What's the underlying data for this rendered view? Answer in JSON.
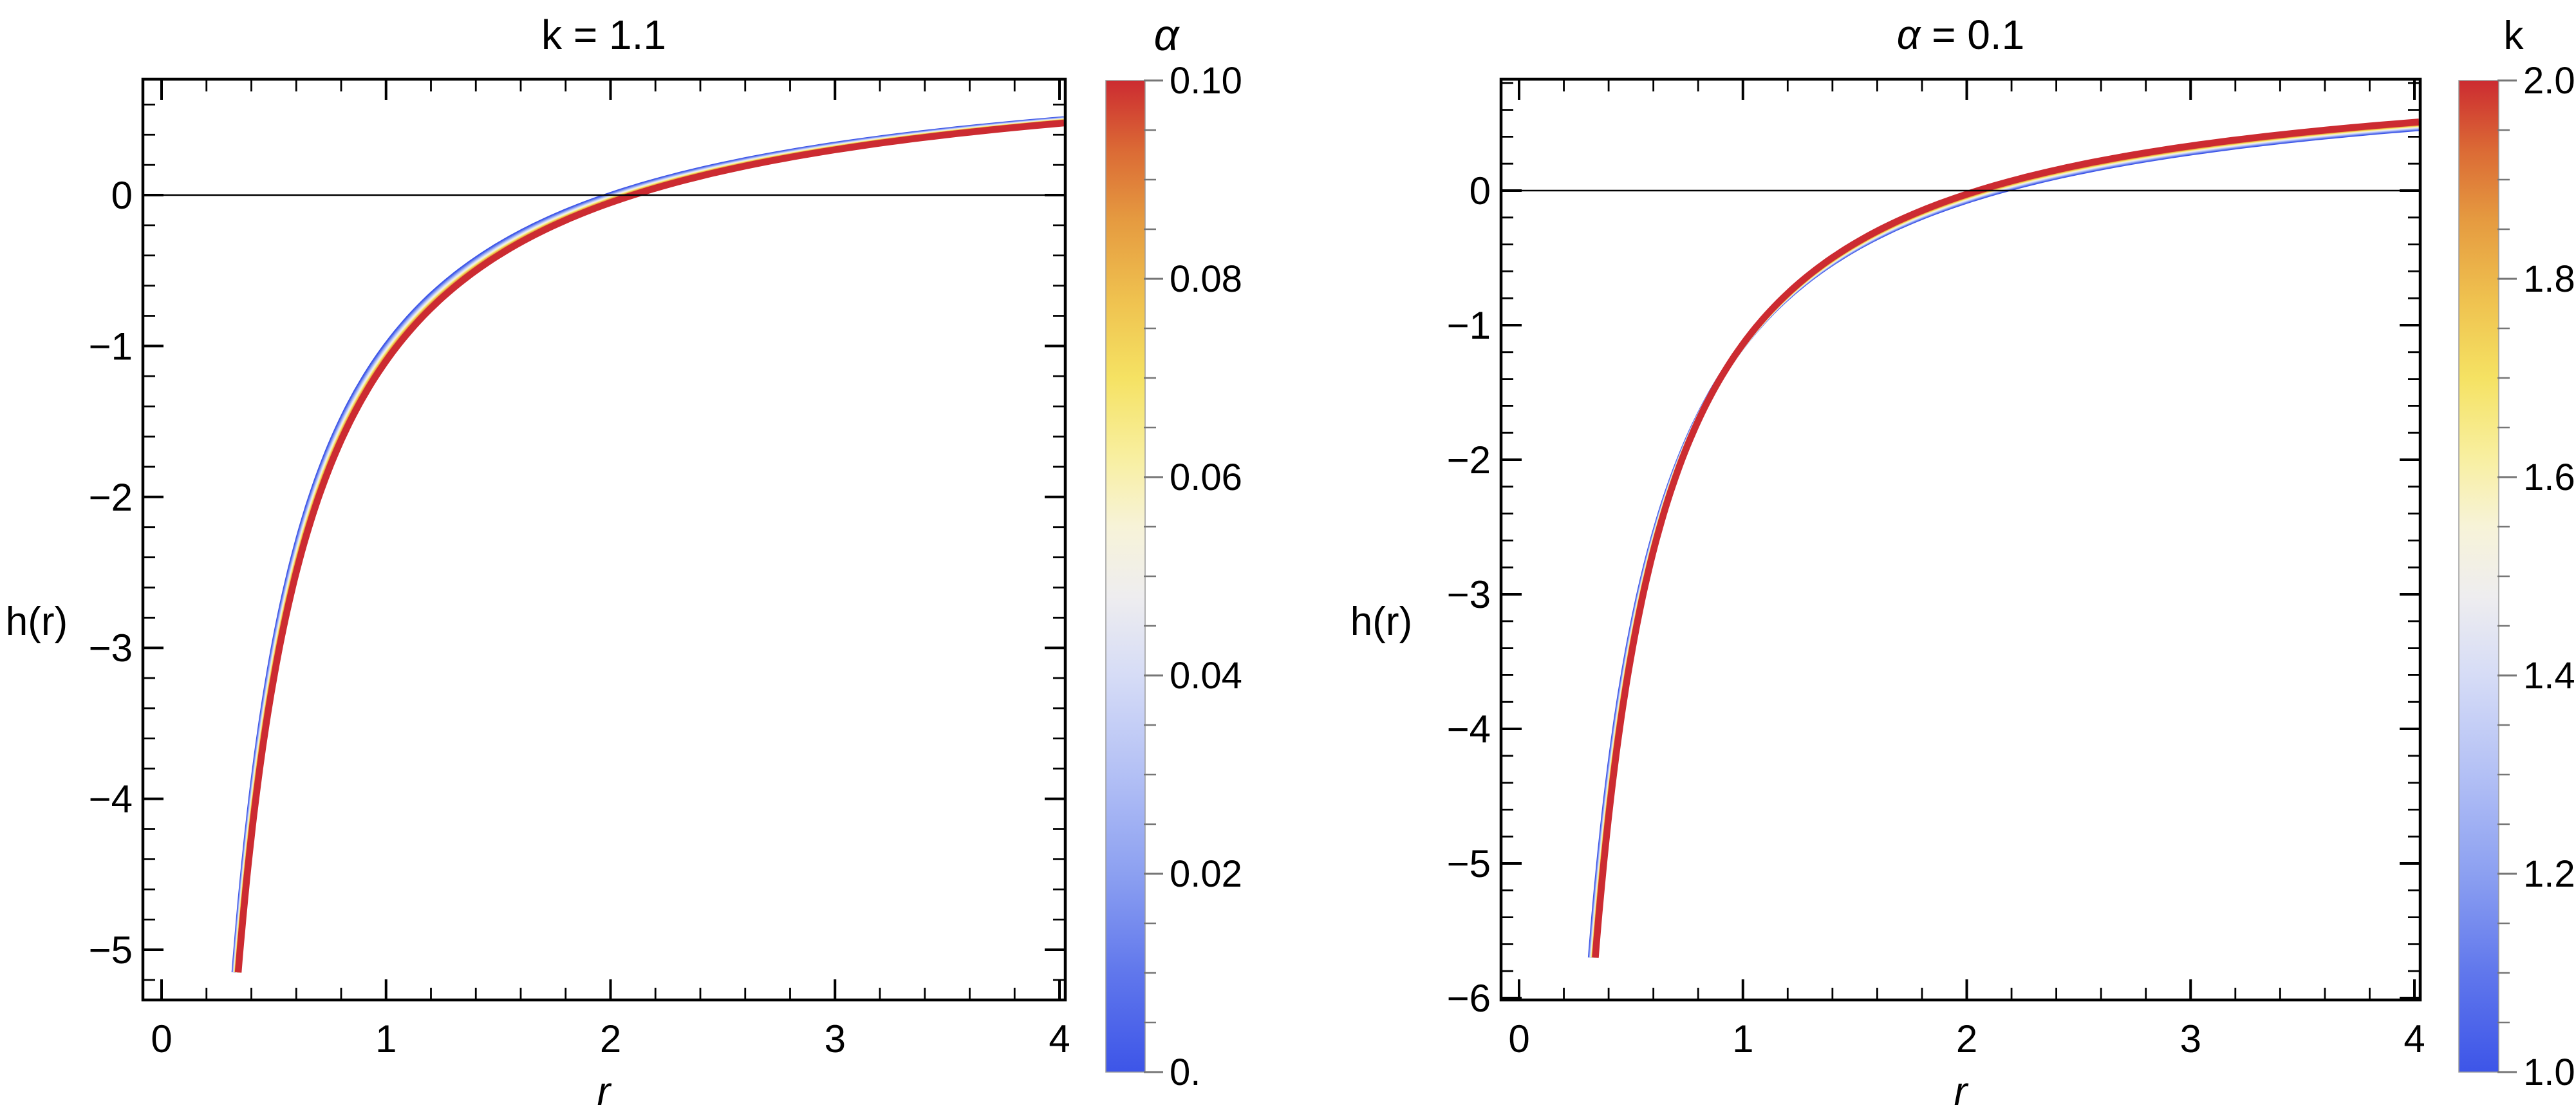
{
  "chart_data": [
    {
      "type": "line",
      "title": "k = 1.1",
      "title_parts": [
        {
          "text": "k = 1.1",
          "italic": false
        }
      ],
      "xlabel": "r",
      "ylabel": "h(r)",
      "xlim": [
        -0.08,
        4.03
      ],
      "ylim": [
        -5.33,
        0.77
      ],
      "x_ticks": {
        "values": [
          0,
          1,
          2,
          3,
          4
        ],
        "labels": [
          "0",
          "1",
          "2",
          "3",
          "4"
        ],
        "minor_step": 0.2
      },
      "y_ticks": {
        "values": [
          0,
          -1,
          -2,
          -3,
          -4,
          -5
        ],
        "labels": [
          "0",
          "−1",
          "−2",
          "−3",
          "−4",
          "−5"
        ],
        "minor_step": 0.2
      },
      "zero_line": true,
      "family": {
        "parameter": "α",
        "param_from": 0,
        "param_to": 0.1,
        "n_curves": 11,
        "model": "h(r) = 1 - (c/r)^p ; curves colored by α from blue (0) to red (0.1)",
        "crossing_from": 2.0,
        "crossing_to": 2.1,
        "power_from": 1.0,
        "power_to": 1.0,
        "r_end_h": -5.15,
        "r_max": 4.02,
        "spread_exponent": 0.85
      },
      "series": [
        {
          "name": "α = 0",
          "color_t": 0,
          "samples": [
            [
              0.32,
              -5.25
            ],
            [
              0.4,
              -4.0
            ],
            [
              0.5,
              -3.0
            ],
            [
              0.7,
              -1.86
            ],
            [
              1.0,
              -1.0
            ],
            [
              1.5,
              -0.33
            ],
            [
              2.0,
              0.0
            ],
            [
              3.0,
              0.33
            ],
            [
              4.0,
              0.5
            ]
          ]
        },
        {
          "name": "α = 0.1",
          "color_t": 1,
          "samples": [
            [
              0.33,
              -5.36
            ],
            [
              0.4,
              -4.25
            ],
            [
              0.5,
              -3.2
            ],
            [
              0.7,
              -2.0
            ],
            [
              1.0,
              -1.1
            ],
            [
              1.5,
              -0.4
            ],
            [
              2.1,
              0.0
            ],
            [
              3.0,
              0.3
            ],
            [
              4.0,
              0.48
            ]
          ]
        }
      ],
      "colorbar": {
        "title": "α",
        "title_italic": true,
        "min": 0,
        "max": 0.1,
        "tick_values": [
          0.1,
          0.08,
          0.06,
          0.04,
          0.02,
          0
        ],
        "tick_labels": [
          "0.10",
          "0.08",
          "0.06",
          "0.04",
          "0.02",
          "0."
        ],
        "minor_step": 0.005
      }
    },
    {
      "type": "line",
      "title": "α = 0.1",
      "title_parts": [
        {
          "text": "α",
          "italic": true
        },
        {
          "text": " = 0.1",
          "italic": false
        }
      ],
      "xlabel": "r",
      "ylabel": "h(r)",
      "xlim": [
        -0.08,
        4.03
      ],
      "ylim": [
        -6.0,
        0.83
      ],
      "x_ticks": {
        "values": [
          0,
          1,
          2,
          3,
          4
        ],
        "labels": [
          "0",
          "1",
          "2",
          "3",
          "4"
        ],
        "minor_step": 0.2
      },
      "y_ticks": {
        "values": [
          0,
          -1,
          -2,
          -3,
          -4,
          -5,
          -6
        ],
        "labels": [
          "0",
          "−1",
          "−2",
          "−3",
          "−4",
          "−5",
          "−6"
        ],
        "minor_step": 0.2
      },
      "zero_line": true,
      "family": {
        "parameter": "k",
        "param_from": 1,
        "param_to": 2,
        "n_curves": 11,
        "model": "h(r) = 1 - (c/r)^p ; curves colored by k from blue (1.0) to red (2.0)",
        "crossing_from": 2.15,
        "crossing_to": 2.05,
        "power_from": 1.0,
        "power_to": 1.06,
        "r_end_h": -5.7,
        "r_max": 4.02,
        "spread_exponent": 0.85
      },
      "series": [
        {
          "name": "k = 1",
          "color_t": 0,
          "samples": [
            [
              0.32,
              -5.72
            ],
            [
              0.5,
              -3.3
            ],
            [
              0.7,
              -2.07
            ],
            [
              1.0,
              -1.15
            ],
            [
              1.5,
              -0.43
            ],
            [
              2.15,
              0.0
            ],
            [
              3.0,
              0.28
            ],
            [
              4.0,
              0.46
            ]
          ]
        },
        {
          "name": "k = 2",
          "color_t": 1,
          "samples": [
            [
              0.34,
              -5.72
            ],
            [
              0.5,
              -3.46
            ],
            [
              0.7,
              -2.12
            ],
            [
              1.0,
              -1.14
            ],
            [
              1.5,
              -0.39
            ],
            [
              2.05,
              0.0
            ],
            [
              3.0,
              0.33
            ],
            [
              4.0,
              0.51
            ]
          ]
        }
      ],
      "colorbar": {
        "title": "k",
        "title_italic": false,
        "min": 1,
        "max": 2,
        "tick_values": [
          2.0,
          1.8,
          1.6,
          1.4,
          1.2,
          1.0
        ],
        "tick_labels": [
          "2.0",
          "1.8",
          "1.6",
          "1.4",
          "1.2",
          "1.0"
        ],
        "minor_step": 0.05
      }
    }
  ],
  "style": {
    "background": "#FFFFFF",
    "frame_color": "#000000",
    "text_color": "#000000",
    "legend_tick_color": "#767676",
    "colormap": [
      [
        0.0,
        "#3D55E8"
      ],
      [
        0.1,
        "#6077EC"
      ],
      [
        0.2,
        "#8CA0F1"
      ],
      [
        0.3,
        "#B3C0F5"
      ],
      [
        0.4,
        "#D6DCF6"
      ],
      [
        0.48,
        "#EEEDEF"
      ],
      [
        0.55,
        "#F7F3D8"
      ],
      [
        0.62,
        "#F8EFA0"
      ],
      [
        0.7,
        "#F5E263"
      ],
      [
        0.78,
        "#EFC14F"
      ],
      [
        0.86,
        "#E59A40"
      ],
      [
        0.93,
        "#DB6A35"
      ],
      [
        1.0,
        "#CC2B31"
      ]
    ]
  }
}
